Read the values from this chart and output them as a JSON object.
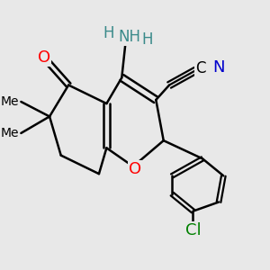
{
  "background_color": "#e8e8e8",
  "bond_color": "#000000",
  "bond_width": 1.8,
  "fig_width": 3.0,
  "fig_height": 3.0,
  "dpi": 100,
  "xlim": [
    0.8,
    7.5
  ],
  "ylim": [
    1.5,
    8.8
  ],
  "atom_colors": {
    "O": "#ff0000",
    "N": "#0000cc",
    "NH2_teal": "#3a8a8a",
    "Cl": "#008000",
    "C": "#000000"
  }
}
